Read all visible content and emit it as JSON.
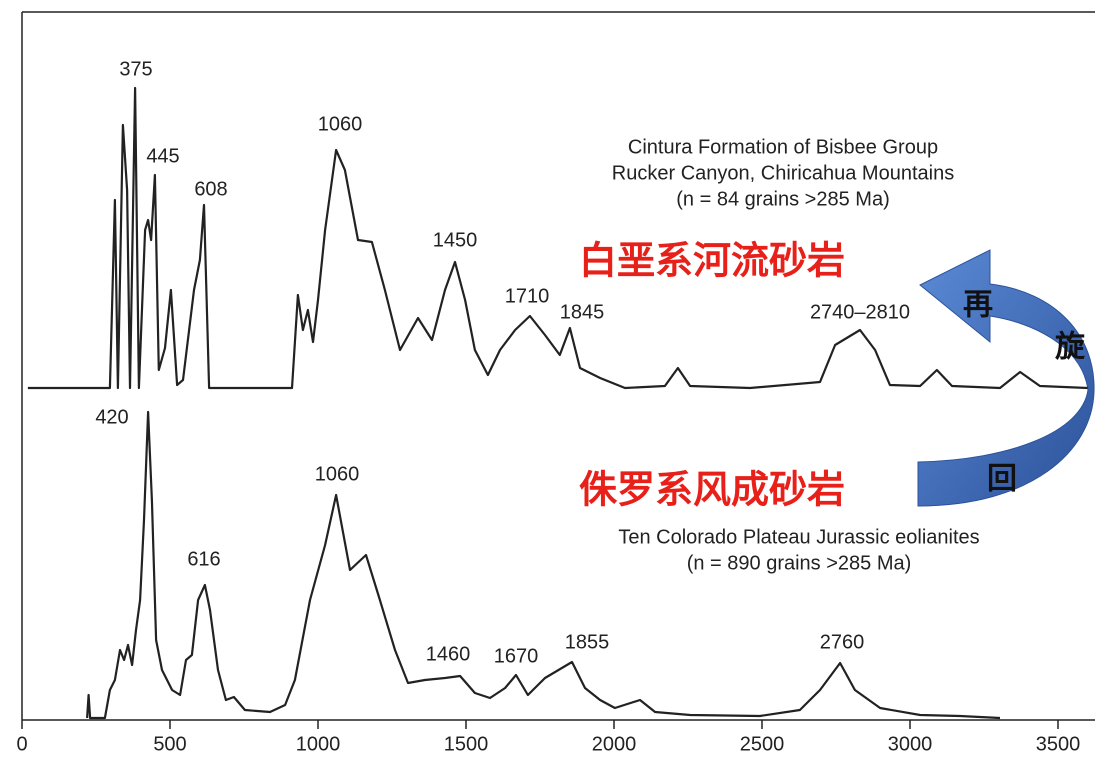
{
  "chart_data": [
    {
      "type": "line",
      "color": "#222222",
      "description": [
        "Cintura Formation of Bisbee Group",
        "Rucker Canyon, Chiricahua Mountains",
        "(n = 84 grains >285 Ma)"
      ],
      "label_cn": "白垩系河流砂岩",
      "annotations": [
        "375",
        "445",
        "608",
        "1060",
        "1450",
        "1710",
        "1845",
        "2740–2810"
      ],
      "xlim": [
        0,
        3600
      ],
      "ylim": [
        0,
        330
      ],
      "x": [
        20,
        297,
        314,
        324,
        341,
        355,
        365,
        382,
        395,
        416,
        426,
        436,
        449,
        462,
        483,
        503,
        524,
        544,
        581,
        601,
        615,
        632,
        912,
        932,
        949,
        966,
        983,
        1000,
        1024,
        1061,
        1091,
        1135,
        1182,
        1226,
        1277,
        1338,
        1385,
        1429,
        1463,
        1497,
        1530,
        1574,
        1615,
        1666,
        1716,
        1767,
        1817,
        1851,
        1885,
        1953,
        2037,
        2172,
        2216,
        2257,
        2459,
        2696,
        2747,
        2831,
        2882,
        2932,
        3034,
        3091,
        3142,
        3304,
        3372,
        3439,
        3600
      ],
      "values": [
        0,
        0,
        188,
        0,
        263,
        198,
        0,
        300,
        0,
        158,
        168,
        148,
        213,
        18,
        40,
        98,
        3,
        8,
        98,
        128,
        183,
        0,
        0,
        93,
        58,
        78,
        46,
        88,
        158,
        238,
        218,
        148,
        146,
        98,
        38,
        70,
        48,
        98,
        126,
        88,
        38,
        13,
        38,
        58,
        72,
        53,
        33,
        60,
        20,
        10,
        0,
        2,
        20,
        2,
        0,
        6,
        43,
        58,
        38,
        3,
        2,
        18,
        2,
        0,
        16,
        2,
        0
      ]
    },
    {
      "type": "line",
      "color": "#222222",
      "description": [
        "Ten Colorado Plateau Jurassic eolianites",
        "(n = 890 grains >285 Ma)"
      ],
      "label_cn": "侏罗系风成砂岩",
      "annotations": [
        "420",
        "616",
        "1060",
        "1460",
        "1670",
        "1855",
        "2760"
      ],
      "xlim": [
        0,
        3600
      ],
      "ylim": [
        0,
        330
      ],
      "xticks": [
        0,
        500,
        1000,
        1500,
        2000,
        2500,
        3000,
        3500
      ],
      "x": [
        220,
        225,
        230,
        280,
        297,
        314,
        331,
        345,
        358,
        372,
        385,
        399,
        412,
        426,
        439,
        453,
        473,
        507,
        534,
        554,
        574,
        595,
        618,
        635,
        662,
        689,
        716,
        753,
        838,
        889,
        922,
        973,
        1024,
        1061,
        1108,
        1162,
        1209,
        1260,
        1304,
        1361,
        1429,
        1480,
        1530,
        1581,
        1632,
        1669,
        1709,
        1767,
        1858,
        1902,
        1953,
        2003,
        2088,
        2139,
        2257,
        2493,
        2628,
        2696,
        2764,
        2814,
        2899,
        3034,
        3169,
        3304
      ],
      "values": [
        0,
        23,
        0,
        0,
        28,
        38,
        68,
        58,
        73,
        53,
        88,
        118,
        198,
        306,
        218,
        78,
        48,
        28,
        23,
        58,
        63,
        118,
        133,
        108,
        48,
        18,
        21,
        8,
        6,
        13,
        38,
        118,
        173,
        223,
        148,
        163,
        118,
        68,
        35,
        38,
        40,
        42,
        25,
        20,
        30,
        43,
        23,
        40,
        56,
        30,
        18,
        10,
        18,
        6,
        3,
        2,
        8,
        28,
        55,
        28,
        10,
        3,
        2,
        0
      ]
    }
  ],
  "overlay": {
    "arrow_text": [
      "再",
      "旋",
      "回"
    ]
  }
}
